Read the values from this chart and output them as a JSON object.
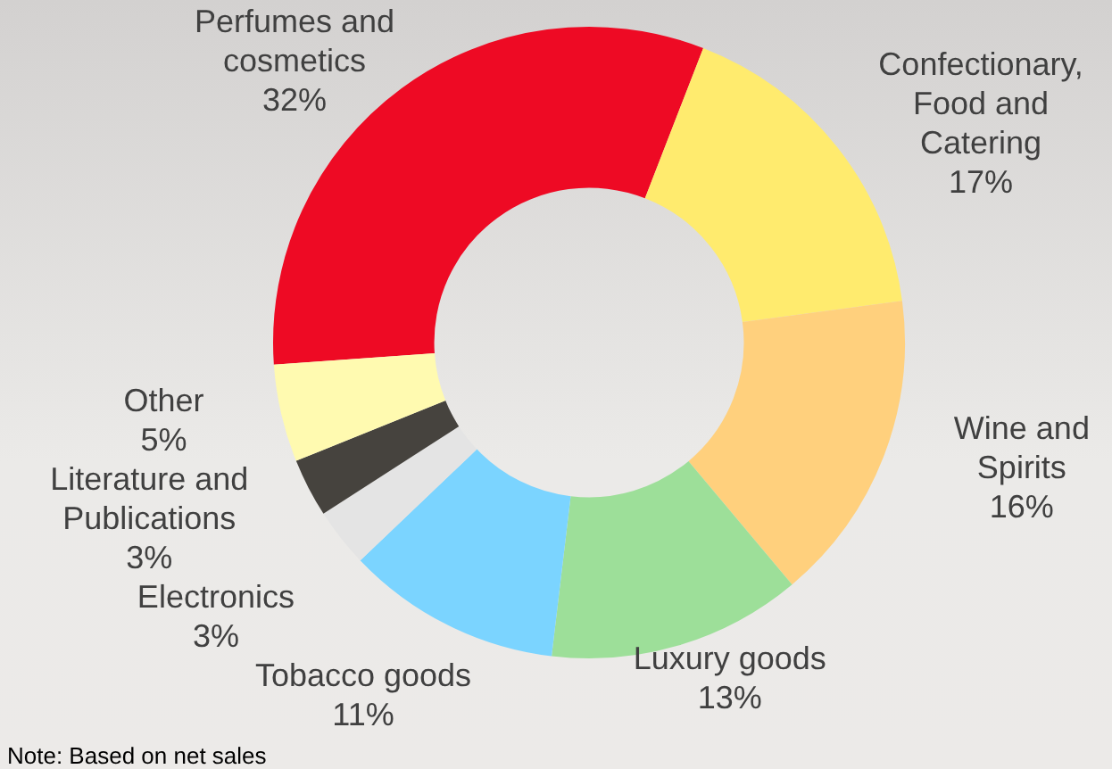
{
  "chart_data": {
    "type": "donut",
    "categories": [
      "Perfumes and cosmetics",
      "Confectionary, Food and Catering",
      "Wine and Spirits",
      "Luxury goods",
      "Tobacco goods",
      "Electronics",
      "Literature and Publications",
      "Other"
    ],
    "values": [
      32,
      17,
      16,
      13,
      11,
      3,
      3,
      5
    ],
    "value_labels": [
      "32%",
      "17%",
      "16%",
      "13%",
      "11%",
      "3%",
      "3%",
      "5%"
    ],
    "colors": [
      "#ee0a24",
      "#ffeb6e",
      "#ffd07d",
      "#9ddf99",
      "#7bd4ff",
      "#e4e4e4",
      "#46433e",
      "#fffab0"
    ],
    "legend": false,
    "annotations": [
      "Note: Based on net sales"
    ]
  }
}
